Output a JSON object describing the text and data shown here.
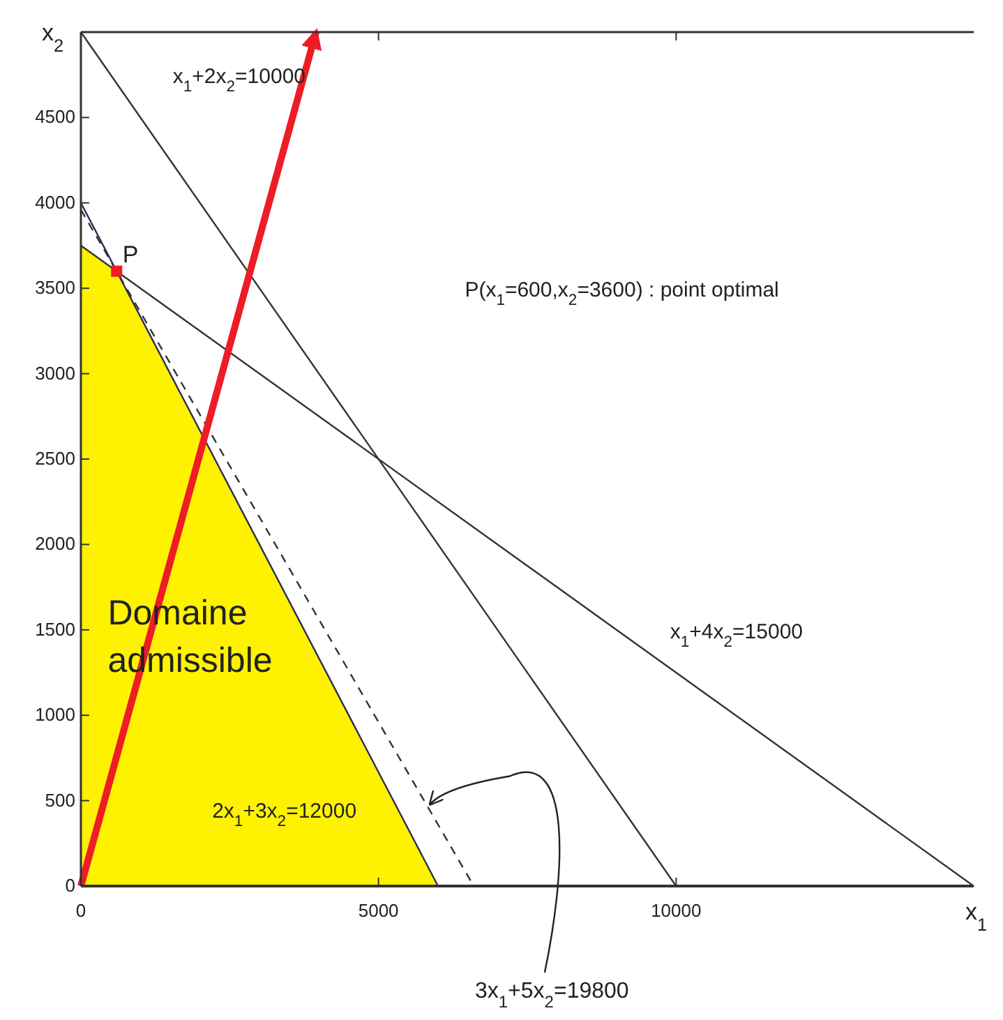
{
  "chart_data": {
    "type": "line",
    "xlabel": "x$_{1}$",
    "ylabel": "x$_{2}$",
    "xlim": [
      0,
      15000
    ],
    "ylim": [
      0,
      5000
    ],
    "xticks": [
      0,
      5000,
      10000
    ],
    "yticks": [
      0,
      500,
      1000,
      1500,
      2000,
      2500,
      3000,
      3500,
      4000,
      4500
    ],
    "grid": false,
    "series": [
      {
        "type": "area",
        "color": "#fff200",
        "x": [
          0,
          600,
          6000
        ],
        "values": [
          3750,
          3600,
          0
        ]
      },
      {
        "type": "line",
        "color": "#333333",
        "line_style": "solid",
        "x": [
          0,
          10000
        ],
        "values": [
          5000,
          0
        ]
      },
      {
        "type": "line",
        "color": "#333333",
        "line_style": "solid",
        "x": [
          0,
          15000
        ],
        "values": [
          3750,
          0
        ]
      },
      {
        "type": "line",
        "color": "#2b2b55",
        "line_style": "solid",
        "x": [
          0,
          6000
        ],
        "values": [
          4000,
          0
        ]
      },
      {
        "type": "line",
        "color": "#333333",
        "line_style": "dashed",
        "x": [
          0,
          6600
        ],
        "values": [
          3960,
          0
        ]
      },
      {
        "type": "line",
        "color": "#ee1c25",
        "line_style": "solid",
        "x": [
          0,
          3950
        ],
        "values": [
          0,
          5000
        ]
      },
      {
        "type": "scatter",
        "color": "#ee1c25",
        "marker": "square",
        "x": [
          600
        ],
        "values": [
          3600
        ]
      }
    ],
    "annotations": [
      "Domaine admissible",
      "x$_{1}$+2x$_{2}$=10000",
      {
        "text": "P",
        "x": 700,
        "y": 3650
      },
      "P(x$_{1}$=600,x$_{2}$=3600) : point optimal",
      "x$_{1}$+4x$_{2}$=15000",
      "2x$_{1}$+3x$_{2}$=12000",
      {
        "text": "3x$_{1}$+5x$_{2}$=19800",
        "x": 5800,
        "y": 480
      }
    ]
  }
}
